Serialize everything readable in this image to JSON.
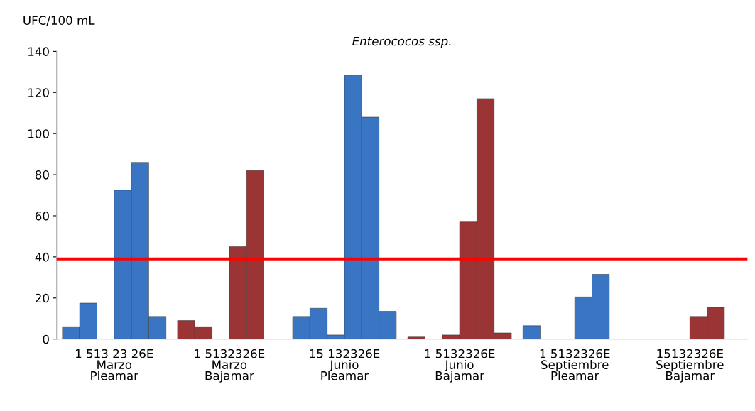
{
  "chart_data": {
    "type": "bar",
    "title": "Enterococos ssp.",
    "ylabel": "UFC/100 mL",
    "categories": [
      "1 513 23 26E\nMarzo\nPleamar",
      "1 5132326E\nMarzo\nBajamar",
      "15 132326E\nJunio\nPleamar",
      "1 5132326E\nJunio\nBajamar",
      "1 5132326E\nSeptiembre\nPleamar",
      "15132326E\nSeptiembre\nBajamar"
    ],
    "series": [
      {
        "colors": [
          "#3a75c4",
          "#9b3535",
          "#3a75c4",
          "#9b3535",
          "#3a75c4",
          "#9b3535"
        ],
        "values": [
          6,
          9,
          11,
          1,
          6.5,
          null
        ]
      },
      {
        "colors": [
          "#3a75c4",
          "#9b3535",
          "#3a75c4",
          "#9b3535",
          "#3a75c4",
          "#9b3535"
        ],
        "values": [
          17.5,
          6,
          15,
          null,
          null,
          null
        ]
      },
      {
        "colors": [
          "#3a75c4",
          "#9b3535",
          "#3a75c4",
          "#9b3535",
          "#3a75c4",
          "#9b3535"
        ],
        "values": [
          null,
          null,
          2,
          2,
          null,
          null
        ]
      },
      {
        "colors": [
          "#3a75c4",
          "#9b3535",
          "#3a75c4",
          "#9b3535",
          "#3a75c4",
          "#9b3535"
        ],
        "values": [
          72.5,
          45,
          128.5,
          57,
          20.5,
          11
        ]
      },
      {
        "colors": [
          "#3a75c4",
          "#9b3535",
          "#3a75c4",
          "#9b3535",
          "#3a75c4",
          "#9b3535"
        ],
        "values": [
          86,
          82,
          108,
          117,
          31.5,
          15.5
        ]
      },
      {
        "colors": [
          "#3a75c4",
          "#9b3535",
          "#3a75c4",
          "#9b3535",
          "#3a75c4",
          "#9b3535"
        ],
        "values": [
          11,
          null,
          13.5,
          3,
          null,
          null
        ]
      }
    ],
    "ylim": [
      0,
      140
    ],
    "yticks": [
      0,
      20,
      40,
      60,
      80,
      100,
      120,
      140
    ],
    "ref_lines": [
      {
        "axis": "y",
        "value": 39,
        "color": "#ff0000"
      }
    ],
    "grid": false,
    "legend": false
  }
}
